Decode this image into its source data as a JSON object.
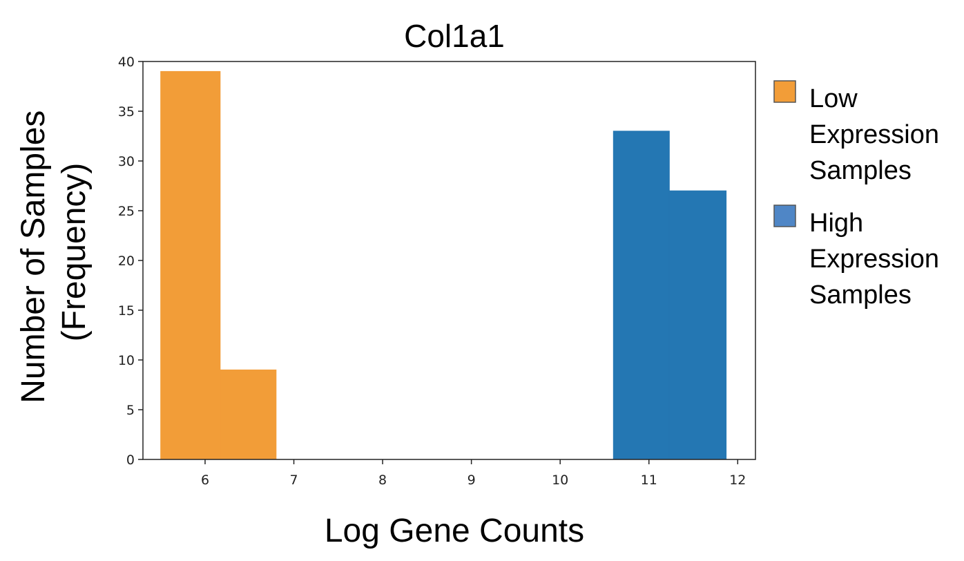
{
  "chart_data": {
    "type": "bar",
    "title": "Col1a1",
    "xlabel": "Log Gene Counts",
    "ylabel_lines": [
      "Number of Samples",
      "(Frequency)"
    ],
    "xlim": [
      5.3,
      12.2
    ],
    "ylim": [
      0,
      40
    ],
    "xticks": [
      6,
      7,
      8,
      9,
      10,
      11,
      12
    ],
    "yticks": [
      0,
      5,
      10,
      15,
      20,
      25,
      30,
      35,
      40
    ],
    "grid": false,
    "legend_position": "right",
    "series": [
      {
        "name": "Low Expression Samples",
        "legend_lines": [
          "Low",
          "Expression",
          "Samples"
        ],
        "color": "#f29d38",
        "bins": [
          {
            "x0": 5.5,
            "x1": 6.17,
            "count": 39
          },
          {
            "x0": 6.17,
            "x1": 6.8,
            "count": 9
          }
        ]
      },
      {
        "name": "High Expression Samples",
        "legend_lines": [
          "High",
          "Expression",
          "Samples"
        ],
        "color": "#2477b3",
        "legend_color": "#4f86c6",
        "bins": [
          {
            "x0": 10.6,
            "x1": 11.23,
            "count": 33
          },
          {
            "x0": 11.23,
            "x1": 11.87,
            "count": 27
          }
        ]
      }
    ]
  }
}
